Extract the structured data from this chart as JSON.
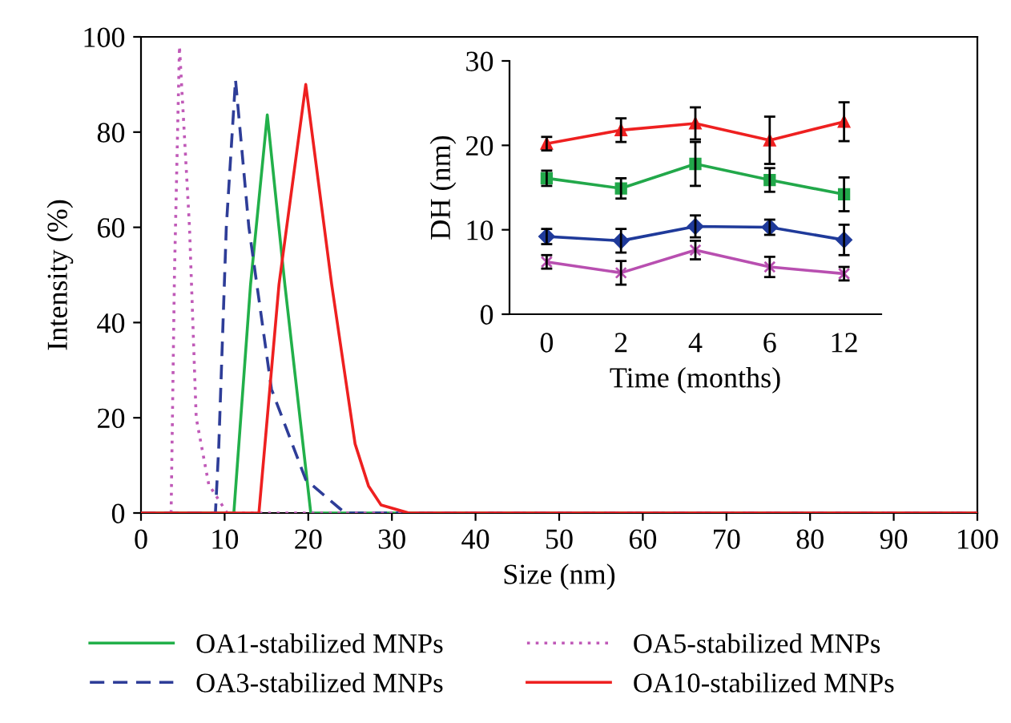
{
  "chart_data": [
    {
      "type": "line",
      "xlabel": "Size (nm)",
      "ylabel": "Intensity (%)",
      "xlim": [
        0,
        100
      ],
      "ylim": [
        0,
        100
      ],
      "xticks": [
        0,
        10,
        20,
        30,
        40,
        50,
        60,
        70,
        80,
        90,
        100
      ],
      "yticks": [
        0,
        20,
        40,
        60,
        80,
        100
      ],
      "grid": false,
      "legend": "bottom",
      "marker": "none",
      "series": [
        {
          "name": "OA1-stabilized MNPs",
          "color": "#22b04a",
          "line_style": "solid",
          "x": [
            0,
            11.1,
            13.1,
            15.1,
            17.2,
            20.3,
            100
          ],
          "values": [
            0,
            0,
            48,
            83.6,
            48,
            0,
            0
          ]
        },
        {
          "name": "OA3-stabilized MNPs",
          "color": "#2e3d98",
          "line_style": "dashed",
          "x": [
            0,
            8.9,
            9.3,
            10.2,
            11.3,
            12.9,
            15.6,
            19.7,
            24.4,
            100
          ],
          "values": [
            0,
            0,
            14,
            60,
            91,
            60,
            26,
            7,
            0,
            0
          ]
        },
        {
          "name": "OA5-stabilized MNPs",
          "color": "#c05ab8",
          "line_style": "dotted",
          "x": [
            3.6,
            4.0,
            4.6,
            5.8,
            6.6,
            8.1,
            10.3,
            100
          ],
          "values": [
            0,
            50,
            98,
            60,
            20,
            6,
            0,
            0
          ]
        },
        {
          "name": "OA10-stabilized MNPs",
          "color": "#ee2020",
          "line_style": "solid",
          "x": [
            0,
            14.1,
            16.5,
            19.7,
            22.8,
            25.6,
            27.2,
            28.7,
            32,
            100
          ],
          "values": [
            0,
            0,
            48,
            90,
            48,
            14.5,
            5.7,
            1.7,
            0,
            0
          ]
        }
      ]
    },
    {
      "type": "line",
      "xlabel": "Time (months)",
      "ylabel": "DH (nm)",
      "categories": [
        "0",
        "2",
        "4",
        "6",
        "12"
      ],
      "ylim": [
        0,
        30
      ],
      "yticks": [
        0,
        10,
        20,
        30
      ],
      "grid": false,
      "legend": false,
      "series": [
        {
          "color": "#ee2020",
          "marker": "triangle",
          "values": [
            20.2,
            21.8,
            22.6,
            20.6,
            22.8
          ],
          "errors": [
            0.8,
            1.4,
            1.9,
            2.8,
            2.3
          ]
        },
        {
          "color": "#22a84a",
          "marker": "square",
          "values": [
            16.1,
            14.9,
            17.8,
            15.9,
            14.2
          ],
          "errors": [
            0.9,
            1.2,
            2.6,
            1.4,
            2.0
          ]
        },
        {
          "color": "#1f3a9a",
          "marker": "diamond",
          "values": [
            9.2,
            8.7,
            10.4,
            10.3,
            8.8
          ],
          "errors": [
            0.9,
            1.4,
            1.3,
            0.9,
            1.8
          ]
        },
        {
          "color": "#b84fb0",
          "marker": "cross",
          "values": [
            6.2,
            4.9,
            7.6,
            5.6,
            4.8
          ],
          "errors": [
            0.8,
            1.4,
            1.1,
            1.2,
            0.8
          ]
        }
      ]
    }
  ]
}
